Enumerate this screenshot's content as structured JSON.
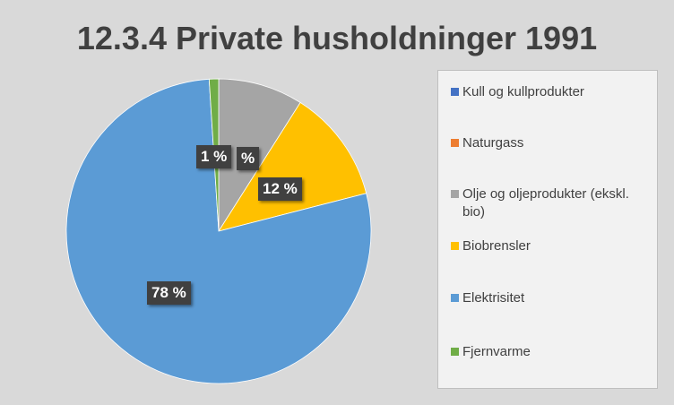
{
  "chart_data": {
    "type": "pie",
    "title": "12.3.4 Private husholdninger 1991",
    "categories": [
      "Kull og kullprodukter",
      "Naturgass",
      "Olje og oljeprodukter (ekskl. bio)",
      "Biobrensler",
      "Elektrisitet",
      "Fjernvarme"
    ],
    "values": [
      0,
      0,
      9,
      12,
      78,
      1
    ],
    "data_labels": [
      "",
      "",
      "%",
      "12 %",
      "78 %",
      "1 %"
    ],
    "colors": [
      "#4472c4",
      "#ed7d31",
      "#a5a5a5",
      "#ffc000",
      "#5b9bd5",
      "#70ad47"
    ],
    "legend_position": "right"
  }
}
